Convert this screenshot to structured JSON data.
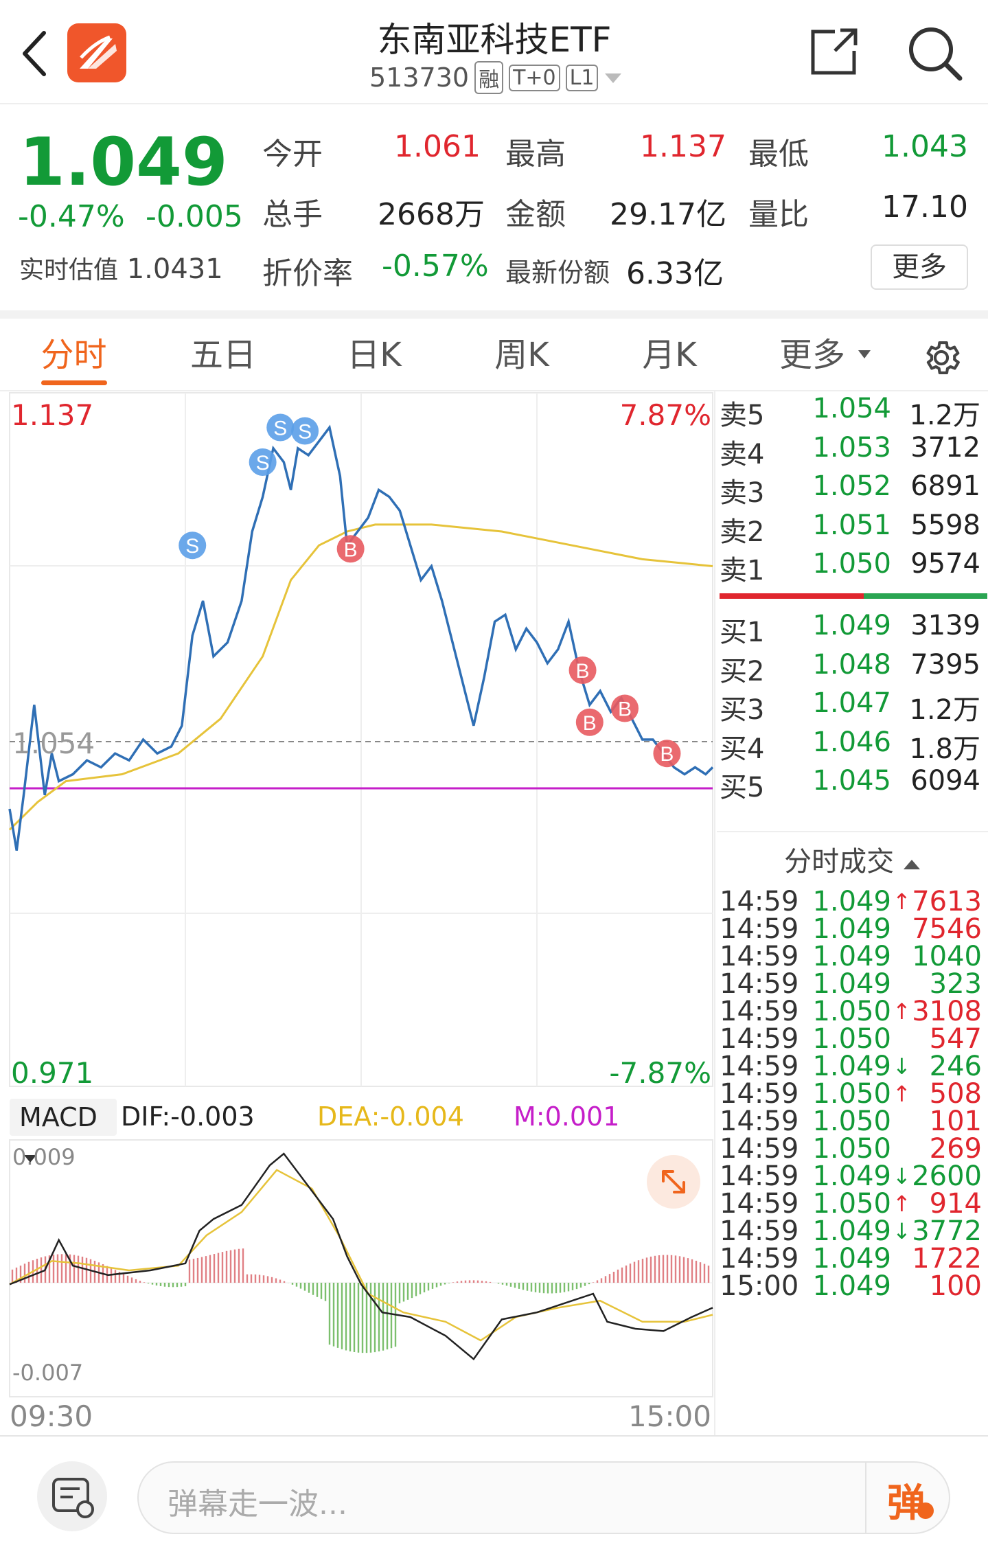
{
  "header": {
    "title": "东南亚科技ETF",
    "code": "513730",
    "tags": [
      "融",
      "T+0",
      "L1"
    ]
  },
  "quote": {
    "price": "1.049",
    "change_pct": "-0.47%",
    "change": "-0.005",
    "estimate_label": "实时估值",
    "estimate": "1.0431",
    "stats": [
      {
        "label": "今开",
        "value": "1.061",
        "color": "red"
      },
      {
        "label": "最高",
        "value": "1.137",
        "color": "red"
      },
      {
        "label": "最低",
        "value": "1.043",
        "color": "green"
      },
      {
        "label": "总手",
        "value": "2668万",
        "color": "dark"
      },
      {
        "label": "金额",
        "value": "29.17亿",
        "color": "dark"
      },
      {
        "label": "量比",
        "value": "17.10",
        "color": "dark"
      }
    ],
    "discount_label": "折价率",
    "discount": "-0.57%",
    "shares_label": "最新份额",
    "shares": "6.33亿",
    "more_label": "更多"
  },
  "tabs": [
    "分时",
    "五日",
    "日K",
    "周K",
    "月K",
    "更多"
  ],
  "chart": {
    "y_max": "1.137",
    "y_min": "0.971",
    "pct_max": "7.87%",
    "pct_min": "-7.87%",
    "ref_label": "1.054",
    "macd": {
      "label": "MACD",
      "dif": "DIF:-0.003",
      "dea": "DEA:-0.004",
      "m": "M:0.001",
      "max": "0.009",
      "min": "-0.007"
    },
    "time_start": "09:30",
    "time_end": "15:00",
    "markers": [
      {
        "t": "S",
        "x": 0.26,
        "y": 0.22
      },
      {
        "t": "S",
        "x": 0.36,
        "y": 0.1
      },
      {
        "t": "S",
        "x": 0.385,
        "y": 0.05
      },
      {
        "t": "S",
        "x": 0.42,
        "y": 0.055
      },
      {
        "t": "B",
        "x": 0.485,
        "y": 0.225
      },
      {
        "t": "B",
        "x": 0.815,
        "y": 0.4
      },
      {
        "t": "B",
        "x": 0.825,
        "y": 0.475
      },
      {
        "t": "B",
        "x": 0.875,
        "y": 0.455
      },
      {
        "t": "B",
        "x": 0.935,
        "y": 0.52
      }
    ]
  },
  "orderbook": {
    "asks": [
      {
        "label": "卖5",
        "price": "1.054",
        "vol": "1.2万"
      },
      {
        "label": "卖4",
        "price": "1.053",
        "vol": "3712"
      },
      {
        "label": "卖3",
        "price": "1.052",
        "vol": "6891"
      },
      {
        "label": "卖2",
        "price": "1.051",
        "vol": "5598"
      },
      {
        "label": "卖1",
        "price": "1.050",
        "vol": "9574"
      }
    ],
    "bids": [
      {
        "label": "买1",
        "price": "1.049",
        "vol": "3139"
      },
      {
        "label": "买2",
        "price": "1.048",
        "vol": "7395"
      },
      {
        "label": "买3",
        "price": "1.047",
        "vol": "1.2万"
      },
      {
        "label": "买4",
        "price": "1.046",
        "vol": "1.8万"
      },
      {
        "label": "买5",
        "price": "1.045",
        "vol": "6094"
      }
    ]
  },
  "ticks_title": "分时成交",
  "ticks": [
    {
      "time": "14:59",
      "price": "1.049",
      "pc": "green",
      "arrow": "↑",
      "vol": "7613",
      "vc": "red"
    },
    {
      "time": "14:59",
      "price": "1.049",
      "pc": "green",
      "arrow": "",
      "vol": "7546",
      "vc": "red"
    },
    {
      "time": "14:59",
      "price": "1.049",
      "pc": "green",
      "arrow": "",
      "vol": "1040",
      "vc": "green"
    },
    {
      "time": "14:59",
      "price": "1.049",
      "pc": "green",
      "arrow": "",
      "vol": "323",
      "vc": "green"
    },
    {
      "time": "14:59",
      "price": "1.050",
      "pc": "green",
      "arrow": "↑",
      "vol": "3108",
      "vc": "red"
    },
    {
      "time": "14:59",
      "price": "1.050",
      "pc": "green",
      "arrow": "",
      "vol": "547",
      "vc": "red"
    },
    {
      "time": "14:59",
      "price": "1.049",
      "pc": "green",
      "arrow": "↓",
      "vol": "246",
      "vc": "green"
    },
    {
      "time": "14:59",
      "price": "1.050",
      "pc": "green",
      "arrow": "↑",
      "vol": "508",
      "vc": "red"
    },
    {
      "time": "14:59",
      "price": "1.050",
      "pc": "green",
      "arrow": "",
      "vol": "101",
      "vc": "red"
    },
    {
      "time": "14:59",
      "price": "1.050",
      "pc": "green",
      "arrow": "",
      "vol": "269",
      "vc": "red"
    },
    {
      "time": "14:59",
      "price": "1.049",
      "pc": "green",
      "arrow": "↓",
      "vol": "2600",
      "vc": "green"
    },
    {
      "time": "14:59",
      "price": "1.050",
      "pc": "green",
      "arrow": "↑",
      "vol": "914",
      "vc": "red"
    },
    {
      "time": "14:59",
      "price": "1.049",
      "pc": "green",
      "arrow": "↓",
      "vol": "3772",
      "vc": "green"
    },
    {
      "time": "14:59",
      "price": "1.049",
      "pc": "green",
      "arrow": "",
      "vol": "1722",
      "vc": "red"
    },
    {
      "time": "15:00",
      "price": "1.049",
      "pc": "green",
      "arrow": "",
      "vol": "100",
      "vc": "red"
    }
  ],
  "bottom": {
    "placeholder": "弹幕走一波...",
    "danmu": "弹"
  },
  "colors": {
    "red": "#e0262e",
    "green": "#129a37",
    "orange": "#f0651d",
    "blue": "#2f6fb5",
    "avg": "#e6c33a",
    "purple": "#c51ec9"
  }
}
